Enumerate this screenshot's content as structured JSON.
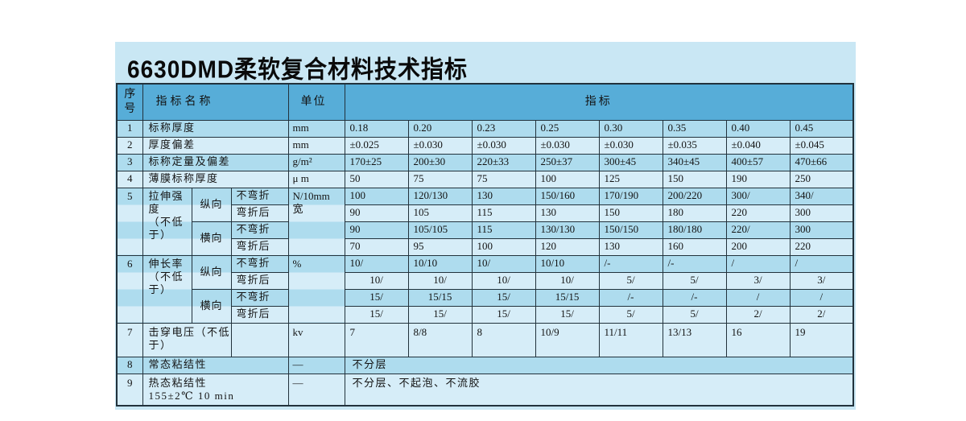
{
  "page": {
    "title": "6630DMD柔软复合材料技术指标"
  },
  "colors": {
    "panel_background": "#c9e7f4",
    "header_row": "#57add8",
    "stripe_dark": "#aedcee",
    "stripe_light": "#d6edf8",
    "table_border": "#22323c"
  },
  "table": {
    "headers": {
      "seq": "序\n号",
      "name": "指标名称",
      "unit": "单位",
      "spec": "指标"
    },
    "rows": {
      "r1": {
        "no": "1",
        "name": "标称厚度",
        "unit": "mm",
        "values": [
          "0.18",
          "0.20",
          "0.23",
          "0.25",
          "0.30",
          "0.35",
          "0.40",
          "0.45"
        ]
      },
      "r2": {
        "no": "2",
        "name": "厚度偏差",
        "unit": "mm",
        "values": [
          "±0.025",
          "±0.030",
          "±0.030",
          "±0.030",
          "±0.030",
          "±0.035",
          "±0.040",
          "±0.045"
        ]
      },
      "r3": {
        "no": "3",
        "name": "标称定量及偏差",
        "unit": "g/m²",
        "values": [
          "170±25",
          "200±30",
          "220±33",
          "250±37",
          "300±45",
          "340±45",
          "400±57",
          "470±66"
        ]
      },
      "r4": {
        "no": "4",
        "name": "薄膜标称厚度",
        "unit": "μ m",
        "values": [
          "50",
          "75",
          "75",
          "100",
          "125",
          "150",
          "190",
          "250"
        ]
      },
      "r5": {
        "no": "5",
        "name": "拉伸强\n度\n（不低\n于）",
        "unit": "N/10mm\n宽",
        "dir1": "纵向",
        "dir2": "横向",
        "cond1": "不弯折",
        "cond2": "弯折后",
        "sub": [
          [
            "100",
            "120/130",
            "130",
            "150/160",
            "170/190",
            "200/220",
            "300/",
            "340/"
          ],
          [
            "90",
            "105",
            "115",
            "130",
            "150",
            "180",
            "220",
            "300"
          ],
          [
            "90",
            "105/105",
            "115",
            "130/130",
            "150/150",
            "180/180",
            "220/",
            "300"
          ],
          [
            "70",
            "95",
            "100",
            "120",
            "130",
            "160",
            "200",
            "220"
          ]
        ]
      },
      "r6": {
        "no": "6",
        "name": "伸长率\n（不低\n于）",
        "unit": "%",
        "dir1": "纵向",
        "dir2": "横向",
        "cond1": "不弯折",
        "cond2": "弯折后",
        "sub": [
          [
            "10/",
            "10/10",
            "10/",
            "10/10",
            "/-",
            "/-",
            "/",
            "/"
          ],
          [
            "10/",
            "10/",
            "10/",
            "10/",
            "5/",
            "5/",
            "3/",
            "3/"
          ],
          [
            "15/",
            "15/15",
            "15/",
            "15/15",
            "/-",
            "/-",
            "/",
            "/"
          ],
          [
            "15/",
            "15/",
            "15/",
            "15/",
            "5/",
            "5/",
            "2/",
            "2/"
          ]
        ]
      },
      "r7": {
        "no": "7",
        "name": "击穿电压（不低\n于）",
        "unit": "kv",
        "values": [
          "7",
          "8/8",
          "8",
          "10/9",
          "11/11",
          "13/13",
          "16",
          "19"
        ]
      },
      "r8": {
        "no": "8",
        "name": "常态粘结性",
        "unit": "—",
        "value": "不分层"
      },
      "r9": {
        "no": "9",
        "name": "热态粘结性\n155±2℃ 10 min",
        "unit": "—",
        "value": "不分层、不起泡、不流胶"
      }
    }
  }
}
